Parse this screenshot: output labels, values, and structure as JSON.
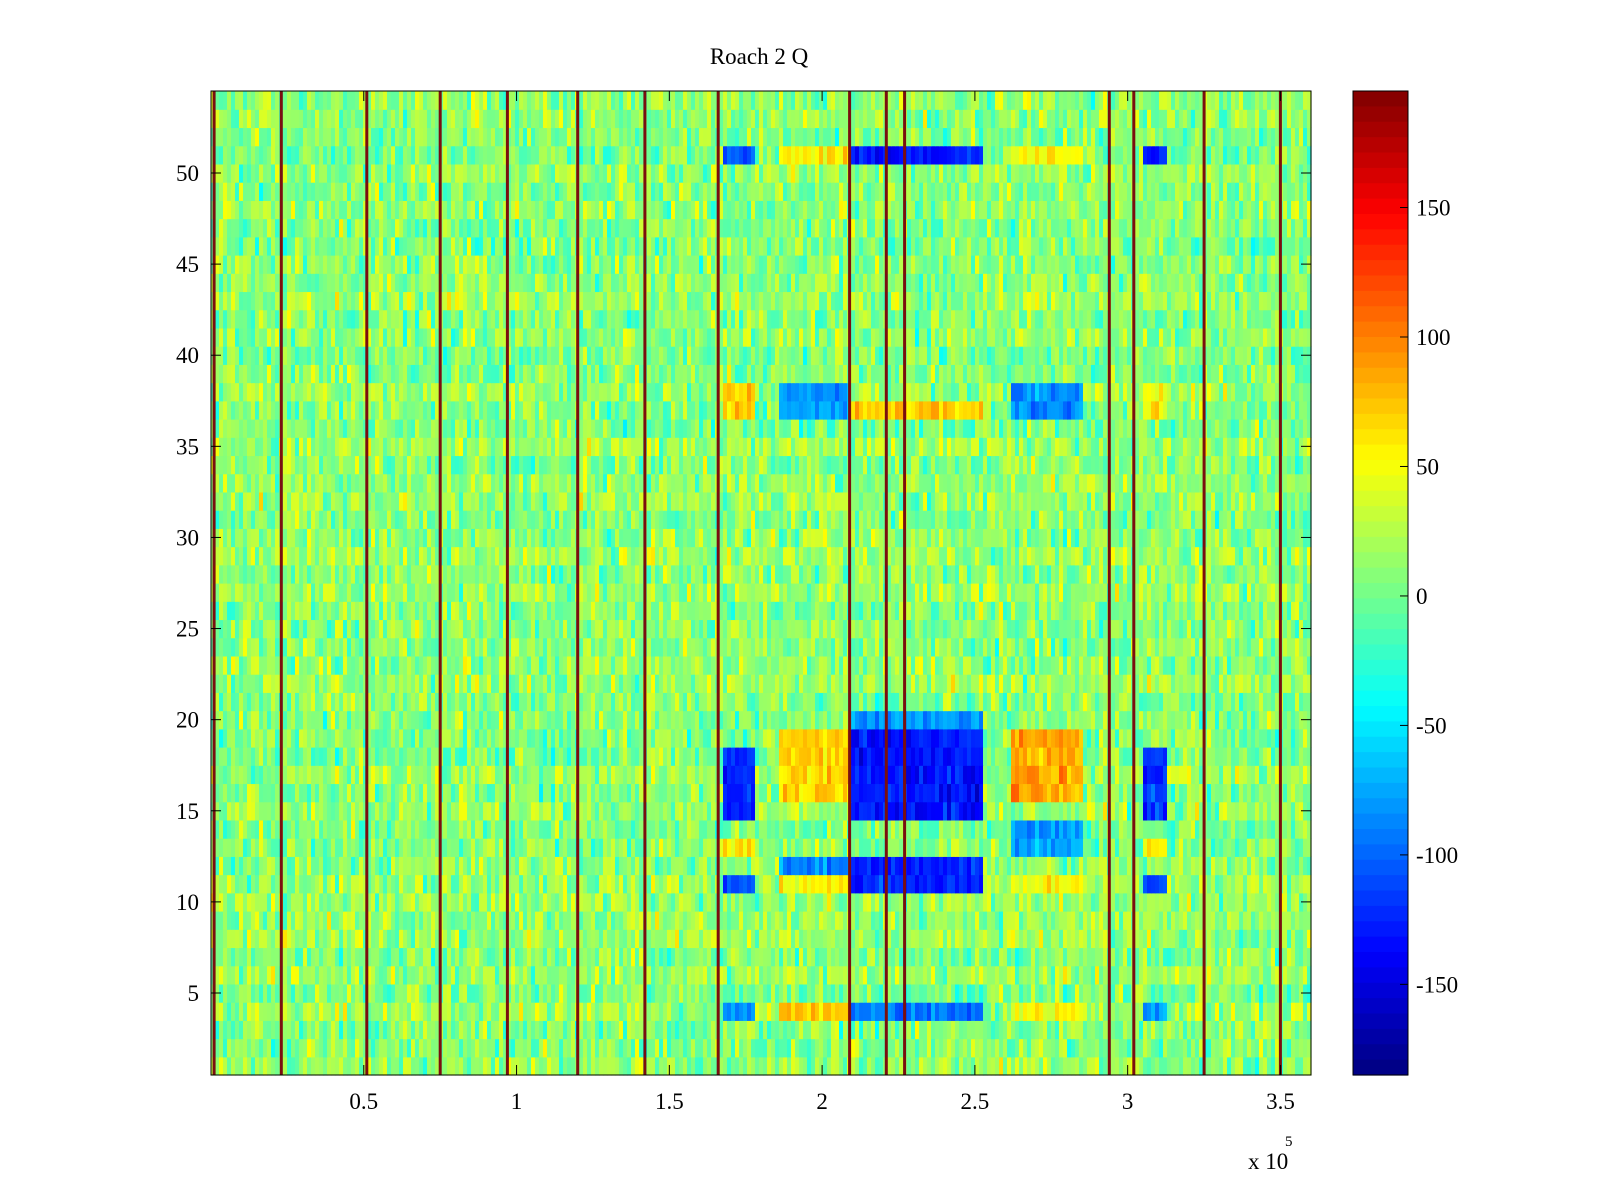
{
  "chart_data": {
    "type": "heatmap",
    "title": "Roach 2 Q",
    "xlabel": "",
    "ylabel": "",
    "x_multiplier_label": "x 10",
    "x_multiplier_exponent": "5",
    "xlim": [
      0,
      360000
    ],
    "ylim": [
      0.5,
      54.5
    ],
    "x_ticks": [
      50000,
      100000,
      150000,
      200000,
      250000,
      300000,
      350000
    ],
    "x_tick_labels": [
      "0.5",
      "1",
      "1.5",
      "2",
      "2.5",
      "3",
      "3.5"
    ],
    "y_ticks": [
      5,
      10,
      15,
      20,
      25,
      30,
      35,
      40,
      45,
      50
    ],
    "y_tick_labels": [
      "5",
      "10",
      "15",
      "20",
      "25",
      "30",
      "35",
      "40",
      "45",
      "50"
    ],
    "rows": 54,
    "colormap": "jet",
    "color_range": [
      -185,
      195
    ],
    "colorbar_ticks": [
      150,
      100,
      50,
      0,
      -50,
      -100,
      -150
    ],
    "colorbar_tick_labels": [
      "150",
      "100",
      "50",
      "0",
      "-50",
      "-100",
      "-150"
    ],
    "background_mean": 10,
    "vertical_lines_x": [
      1000,
      23000,
      51000,
      75000,
      97000,
      120000,
      142000,
      166000,
      209000,
      221000,
      227000,
      294000,
      302000,
      325000,
      350000
    ],
    "blocks": [
      {
        "x": [
          168000,
          178000
        ],
        "rows": [
          11,
          11
        ],
        "value": -110
      },
      {
        "x": [
          168000,
          178000
        ],
        "rows": [
          15,
          18
        ],
        "value": -125
      },
      {
        "x": [
          168000,
          178000
        ],
        "rows": [
          4,
          4
        ],
        "value": -80
      },
      {
        "x": [
          168000,
          178000
        ],
        "rows": [
          13,
          13
        ],
        "value": 60
      },
      {
        "x": [
          168000,
          178000
        ],
        "rows": [
          37,
          38
        ],
        "value": 75
      },
      {
        "x": [
          168000,
          178000
        ],
        "rows": [
          51,
          51
        ],
        "value": -110
      },
      {
        "x": [
          186000,
          209000
        ],
        "rows": [
          16,
          19
        ],
        "value": 70
      },
      {
        "x": [
          186000,
          209000
        ],
        "rows": [
          11,
          11
        ],
        "value": 55
      },
      {
        "x": [
          186000,
          209000
        ],
        "rows": [
          4,
          4
        ],
        "value": 75
      },
      {
        "x": [
          186000,
          209000
        ],
        "rows": [
          37,
          38
        ],
        "value": -80
      },
      {
        "x": [
          186000,
          209000
        ],
        "rows": [
          12,
          12
        ],
        "value": -90
      },
      {
        "x": [
          186000,
          209000
        ],
        "rows": [
          51,
          51
        ],
        "value": 55
      },
      {
        "x": [
          210000,
          253000
        ],
        "rows": [
          15,
          19
        ],
        "value": -130
      },
      {
        "x": [
          210000,
          253000
        ],
        "rows": [
          11,
          12
        ],
        "value": -125
      },
      {
        "x": [
          210000,
          253000
        ],
        "rows": [
          51,
          51
        ],
        "value": -130
      },
      {
        "x": [
          210000,
          253000
        ],
        "rows": [
          4,
          4
        ],
        "value": -95
      },
      {
        "x": [
          210000,
          253000
        ],
        "rows": [
          37,
          37
        ],
        "value": 70
      },
      {
        "x": [
          210000,
          253000
        ],
        "rows": [
          20,
          20
        ],
        "value": -80
      },
      {
        "x": [
          262000,
          285000
        ],
        "rows": [
          16,
          19
        ],
        "value": 85
      },
      {
        "x": [
          262000,
          285000
        ],
        "rows": [
          11,
          11
        ],
        "value": 50
      },
      {
        "x": [
          262000,
          285000
        ],
        "rows": [
          4,
          4
        ],
        "value": 50
      },
      {
        "x": [
          262000,
          285000
        ],
        "rows": [
          37,
          38
        ],
        "value": -85
      },
      {
        "x": [
          262000,
          285000
        ],
        "rows": [
          13,
          14
        ],
        "value": -80
      },
      {
        "x": [
          262000,
          285000
        ],
        "rows": [
          51,
          51
        ],
        "value": 50
      },
      {
        "x": [
          305000,
          313000
        ],
        "rows": [
          15,
          18
        ],
        "value": -120
      },
      {
        "x": [
          305000,
          313000
        ],
        "rows": [
          11,
          11
        ],
        "value": -110
      },
      {
        "x": [
          305000,
          313000
        ],
        "rows": [
          51,
          51
        ],
        "value": -120
      },
      {
        "x": [
          305000,
          313000
        ],
        "rows": [
          4,
          4
        ],
        "value": -70
      },
      {
        "x": [
          305000,
          313000
        ],
        "rows": [
          13,
          13
        ],
        "value": 60
      },
      {
        "x": [
          305000,
          313000
        ],
        "rows": [
          37,
          38
        ],
        "value": 50
      }
    ]
  }
}
